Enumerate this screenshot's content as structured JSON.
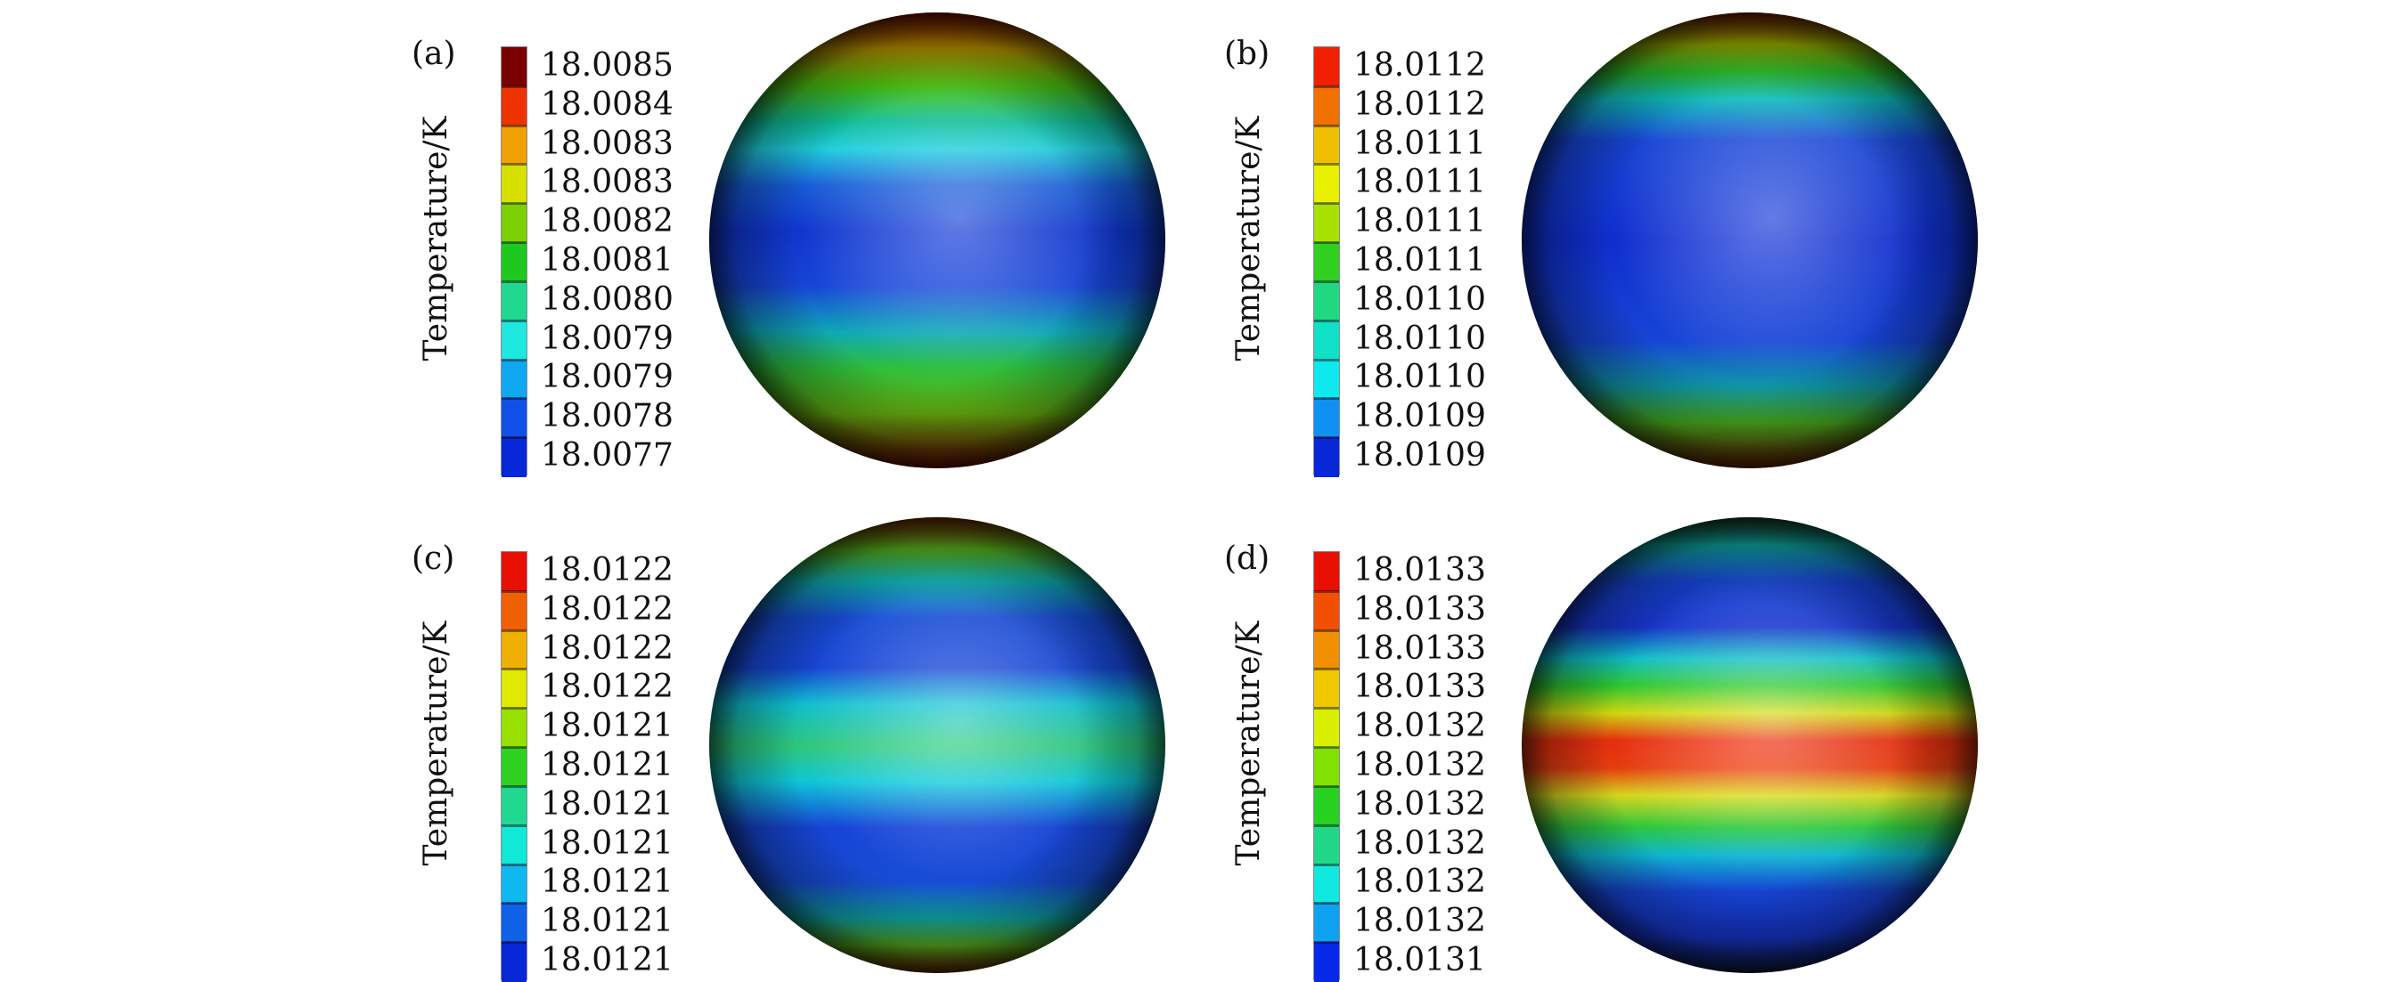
{
  "axis_label": "Temperature/K",
  "panels": [
    {
      "label": "(a)",
      "ticks": [
        "18.0085",
        "18.0084",
        "18.0083",
        "18.0083",
        "18.0082",
        "18.0081",
        "18.0080",
        "18.0079",
        "18.0079",
        "18.0078",
        "18.0077"
      ],
      "band_colors": [
        "#7a0000",
        "#ee3300",
        "#f0a000",
        "#d8e000",
        "#7ccf00",
        "#1ec81e",
        "#20d890",
        "#1ee8e0",
        "#10a8f0",
        "#1050e8",
        "#0828d8"
      ],
      "sphere_stops": [
        {
          "offset": 0.0,
          "color": "#8a1000"
        },
        {
          "offset": 0.08,
          "color": "#c8a000"
        },
        {
          "offset": 0.16,
          "color": "#4fcf10"
        },
        {
          "offset": 0.24,
          "color": "#10c8a0"
        },
        {
          "offset": 0.3,
          "color": "#20d8e8"
        },
        {
          "offset": 0.38,
          "color": "#1860e0"
        },
        {
          "offset": 0.48,
          "color": "#1038d8"
        },
        {
          "offset": 0.6,
          "color": "#1848e0"
        },
        {
          "offset": 0.7,
          "color": "#10b0c0"
        },
        {
          "offset": 0.78,
          "color": "#30c840"
        },
        {
          "offset": 0.88,
          "color": "#70c010"
        },
        {
          "offset": 1.0,
          "color": "#7a0800"
        }
      ]
    },
    {
      "label": "(b)",
      "ticks": [
        "18.0112",
        "18.0112",
        "18.0111",
        "18.0111",
        "18.0111",
        "18.0111",
        "18.0110",
        "18.0110",
        "18.0110",
        "18.0109",
        "18.0109"
      ],
      "band_colors": [
        "#f02000",
        "#f07000",
        "#f0c000",
        "#e8f000",
        "#a8e000",
        "#30d020",
        "#20d880",
        "#10e0c8",
        "#10e8f0",
        "#1090f0",
        "#0828d8"
      ],
      "sphere_stops": [
        {
          "offset": 0.0,
          "color": "#8a2000"
        },
        {
          "offset": 0.07,
          "color": "#a8c000"
        },
        {
          "offset": 0.13,
          "color": "#30d030"
        },
        {
          "offset": 0.19,
          "color": "#10c8c8"
        },
        {
          "offset": 0.28,
          "color": "#1848e0"
        },
        {
          "offset": 0.5,
          "color": "#1030d8"
        },
        {
          "offset": 0.72,
          "color": "#1848e0"
        },
        {
          "offset": 0.82,
          "color": "#10a0b0"
        },
        {
          "offset": 0.9,
          "color": "#50c020"
        },
        {
          "offset": 1.0,
          "color": "#7a2000"
        }
      ]
    },
    {
      "label": "(c)",
      "ticks": [
        "18.0122",
        "18.0122",
        "18.0122",
        "18.0122",
        "18.0121",
        "18.0121",
        "18.0121",
        "18.0121",
        "18.0121",
        "18.0121",
        "18.0121"
      ],
      "band_colors": [
        "#e81000",
        "#f06000",
        "#f0b000",
        "#e0e800",
        "#98e000",
        "#30d020",
        "#20d890",
        "#10e8d8",
        "#10b8f0",
        "#1060e8",
        "#0828d8"
      ],
      "sphere_stops": [
        {
          "offset": 0.0,
          "color": "#8a3000"
        },
        {
          "offset": 0.07,
          "color": "#60c820"
        },
        {
          "offset": 0.14,
          "color": "#10c0c0"
        },
        {
          "offset": 0.22,
          "color": "#1850e0"
        },
        {
          "offset": 0.33,
          "color": "#1848e0"
        },
        {
          "offset": 0.41,
          "color": "#10c8d8"
        },
        {
          "offset": 0.5,
          "color": "#30d080"
        },
        {
          "offset": 0.58,
          "color": "#10d0e0"
        },
        {
          "offset": 0.68,
          "color": "#1848e0"
        },
        {
          "offset": 0.8,
          "color": "#1850e0"
        },
        {
          "offset": 0.88,
          "color": "#10b0b0"
        },
        {
          "offset": 0.94,
          "color": "#60c020"
        },
        {
          "offset": 1.0,
          "color": "#7a3000"
        }
      ]
    },
    {
      "label": "(d)",
      "ticks": [
        "18.0133",
        "18.0133",
        "18.0133",
        "18.0133",
        "18.0132",
        "18.0132",
        "18.0132",
        "18.0132",
        "18.0132",
        "18.0132",
        "18.0131"
      ],
      "band_colors": [
        "#e81000",
        "#f05000",
        "#f09000",
        "#f0c800",
        "#d8f000",
        "#80e000",
        "#28d020",
        "#20d888",
        "#10e8e0",
        "#10a0f0",
        "#0828e8"
      ],
      "sphere_stops": [
        {
          "offset": 0.0,
          "color": "#1a4a30"
        },
        {
          "offset": 0.06,
          "color": "#10b8b0"
        },
        {
          "offset": 0.14,
          "color": "#1848e0"
        },
        {
          "offset": 0.24,
          "color": "#1838d8"
        },
        {
          "offset": 0.31,
          "color": "#10c8d0"
        },
        {
          "offset": 0.37,
          "color": "#30d030"
        },
        {
          "offset": 0.43,
          "color": "#d8e010"
        },
        {
          "offset": 0.49,
          "color": "#f03010"
        },
        {
          "offset": 0.55,
          "color": "#f04010"
        },
        {
          "offset": 0.61,
          "color": "#e0e020"
        },
        {
          "offset": 0.68,
          "color": "#30d040"
        },
        {
          "offset": 0.74,
          "color": "#10c0d8"
        },
        {
          "offset": 0.82,
          "color": "#1848e0"
        },
        {
          "offset": 0.92,
          "color": "#1838d8"
        },
        {
          "offset": 1.0,
          "color": "#102050"
        }
      ]
    }
  ]
}
